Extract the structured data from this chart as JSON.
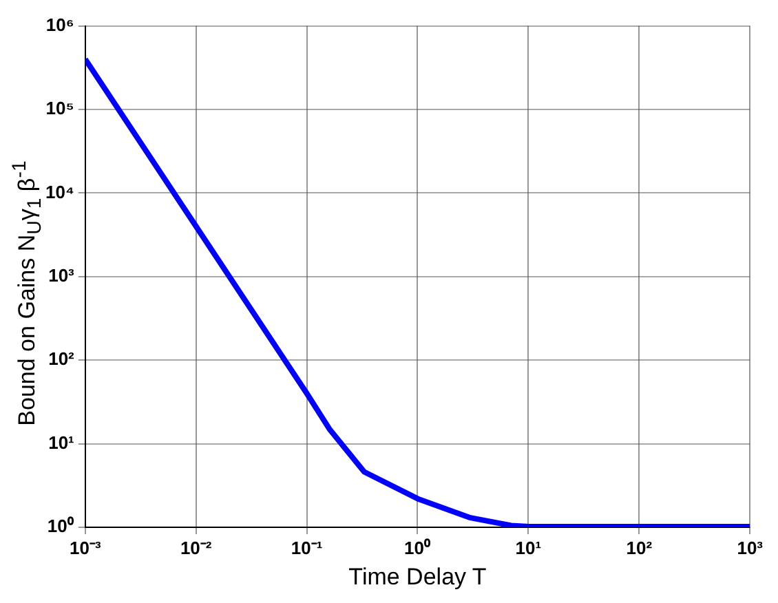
{
  "chart_data": {
    "type": "line",
    "xlabel": "Time Delay T",
    "ylabel": "Bound on Gains N$_{U}$γ$_{1}$ β$^{-1}$",
    "log": "xy",
    "grid": true,
    "legend": false,
    "marker": "none",
    "line_style": "solid",
    "xlim": [
      0.001,
      1000
    ],
    "xticks": [
      {
        "value": 0.001,
        "label": "10⁻³"
      },
      {
        "value": 0.01,
        "label": "10⁻²"
      },
      {
        "value": 0.1,
        "label": "10⁻¹"
      },
      {
        "value": 1,
        "label": "10⁰"
      },
      {
        "value": 10,
        "label": "10¹"
      },
      {
        "value": 100,
        "label": "10²"
      },
      {
        "value": 1000,
        "label": "10³"
      }
    ],
    "ylim": [
      1,
      1000000
    ],
    "yticks": [
      {
        "value": 1,
        "label": "10⁰"
      },
      {
        "value": 10,
        "label": "10¹"
      },
      {
        "value": 100,
        "label": "10²"
      },
      {
        "value": 1000,
        "label": "10³"
      },
      {
        "value": 10000,
        "label": "10⁴"
      },
      {
        "value": 100000,
        "label": "10⁵"
      },
      {
        "value": 1000000,
        "label": "10⁶"
      }
    ],
    "series": [
      {
        "color": "#0000ff",
        "x": [
          0.001,
          0.01,
          0.1,
          0.16,
          0.33,
          1,
          3,
          7,
          10,
          100,
          1000
        ],
        "values": [
          400000,
          4000,
          40,
          15,
          4.6,
          2.2,
          1.3,
          1.05,
          1.02,
          1.02,
          1.02
        ]
      }
    ]
  }
}
